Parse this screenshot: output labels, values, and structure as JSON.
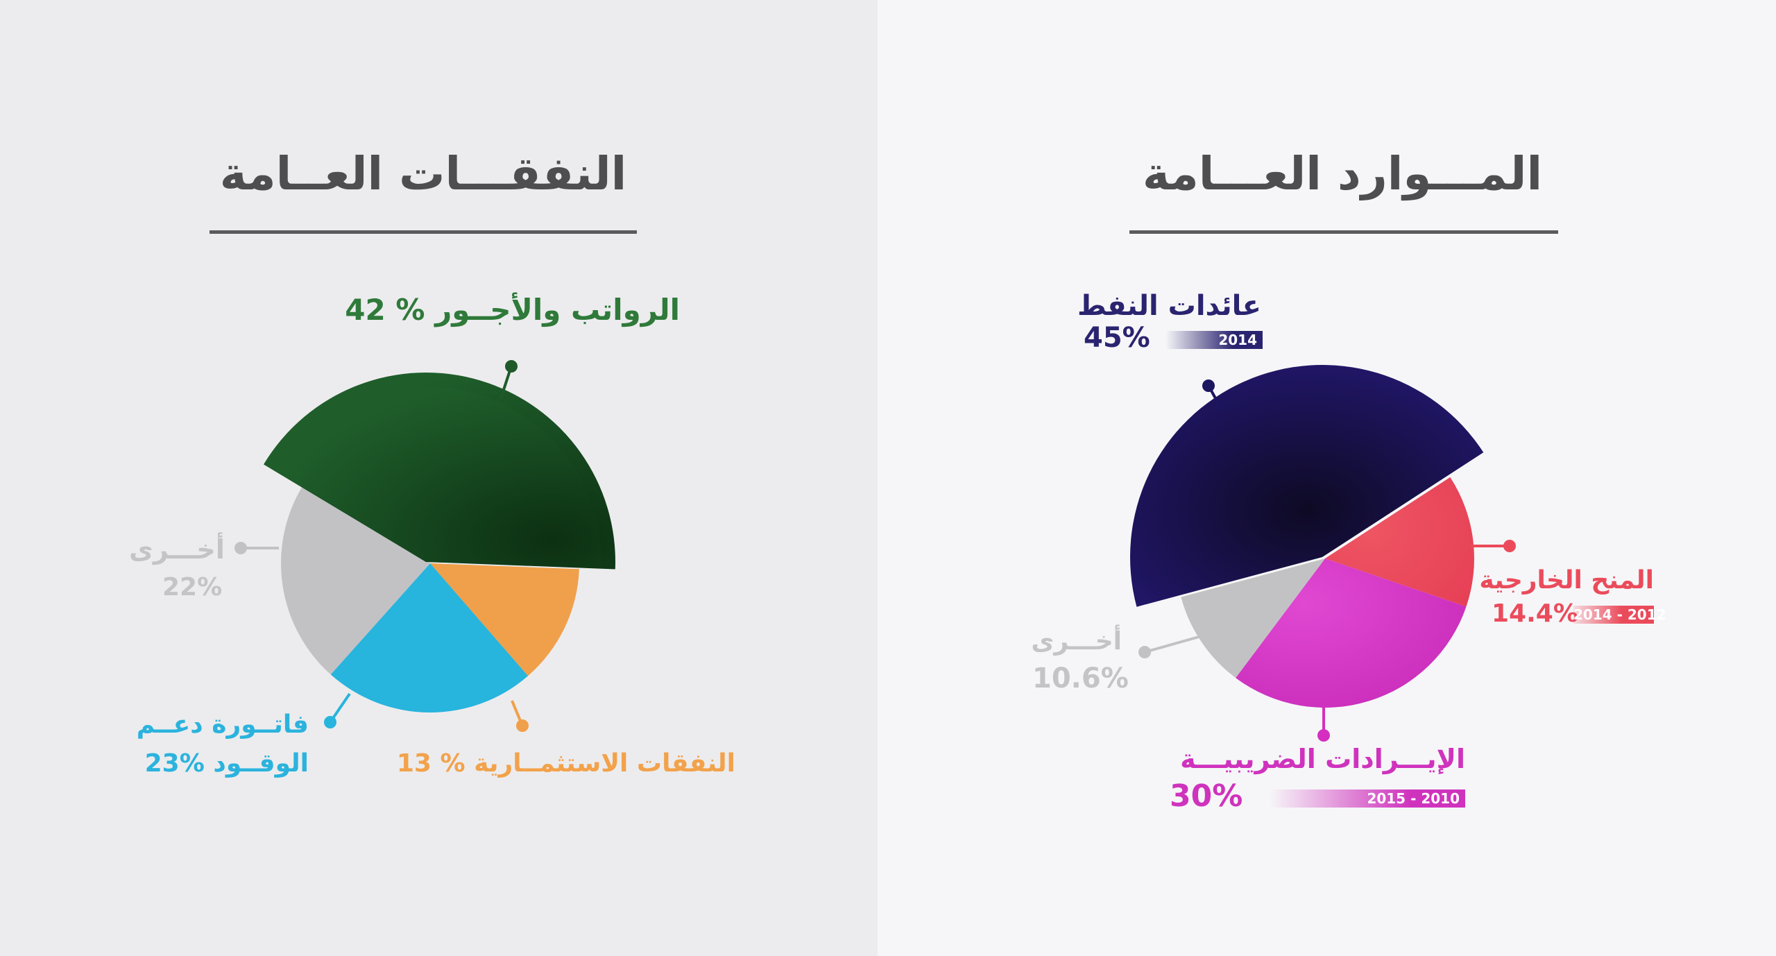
{
  "left_title": "النفقـــات العــامة",
  "right_title": "المـــوارد العـــامة",
  "colors": {
    "green": "#1e5a2a",
    "blue": "#27b4dd",
    "orange": "#f0a04a",
    "gray": "#c2c2c4",
    "navy": "#1c1560",
    "red": "#ec4a5a",
    "magenta": "#d42fc0"
  },
  "chart_data": [
    {
      "type": "pie",
      "title": "النفقـــات العــامة",
      "slices": [
        {
          "label": "الرواتب والأجــور",
          "value": 42,
          "value_text": "42 %",
          "color": "#1e5a2a"
        },
        {
          "label": "النفقات الاستثمــارية",
          "value": 13,
          "value_text": "13 %",
          "color": "#f0a04a"
        },
        {
          "label_line1": "فاتــورة دعــم",
          "label_line2": "الوقــود",
          "value": 23,
          "value_text": "23%",
          "color": "#27b4dd"
        },
        {
          "label": "أخـــرى",
          "value": 22,
          "value_text": "22%",
          "color": "#c2c2c4"
        }
      ]
    },
    {
      "type": "pie",
      "title": "المـــوارد العـــامة",
      "slices": [
        {
          "label": "عائدات النفط",
          "value": 45,
          "value_text": "45%",
          "period": "2014",
          "color": "#1c1560"
        },
        {
          "label": "المنح الخارجية",
          "value": 14.4,
          "value_text": "14.4%",
          "period": "2014 - 2012",
          "color": "#ec4a5a"
        },
        {
          "label": "الإيـــرادات الضريبيـــة",
          "value": 30,
          "value_text": "30%",
          "period": "2015 - 2010",
          "color": "#d42fc0"
        },
        {
          "label": "أخـــرى",
          "value": 10.6,
          "value_text": "10.6%",
          "color": "#c2c2c4"
        }
      ]
    }
  ]
}
